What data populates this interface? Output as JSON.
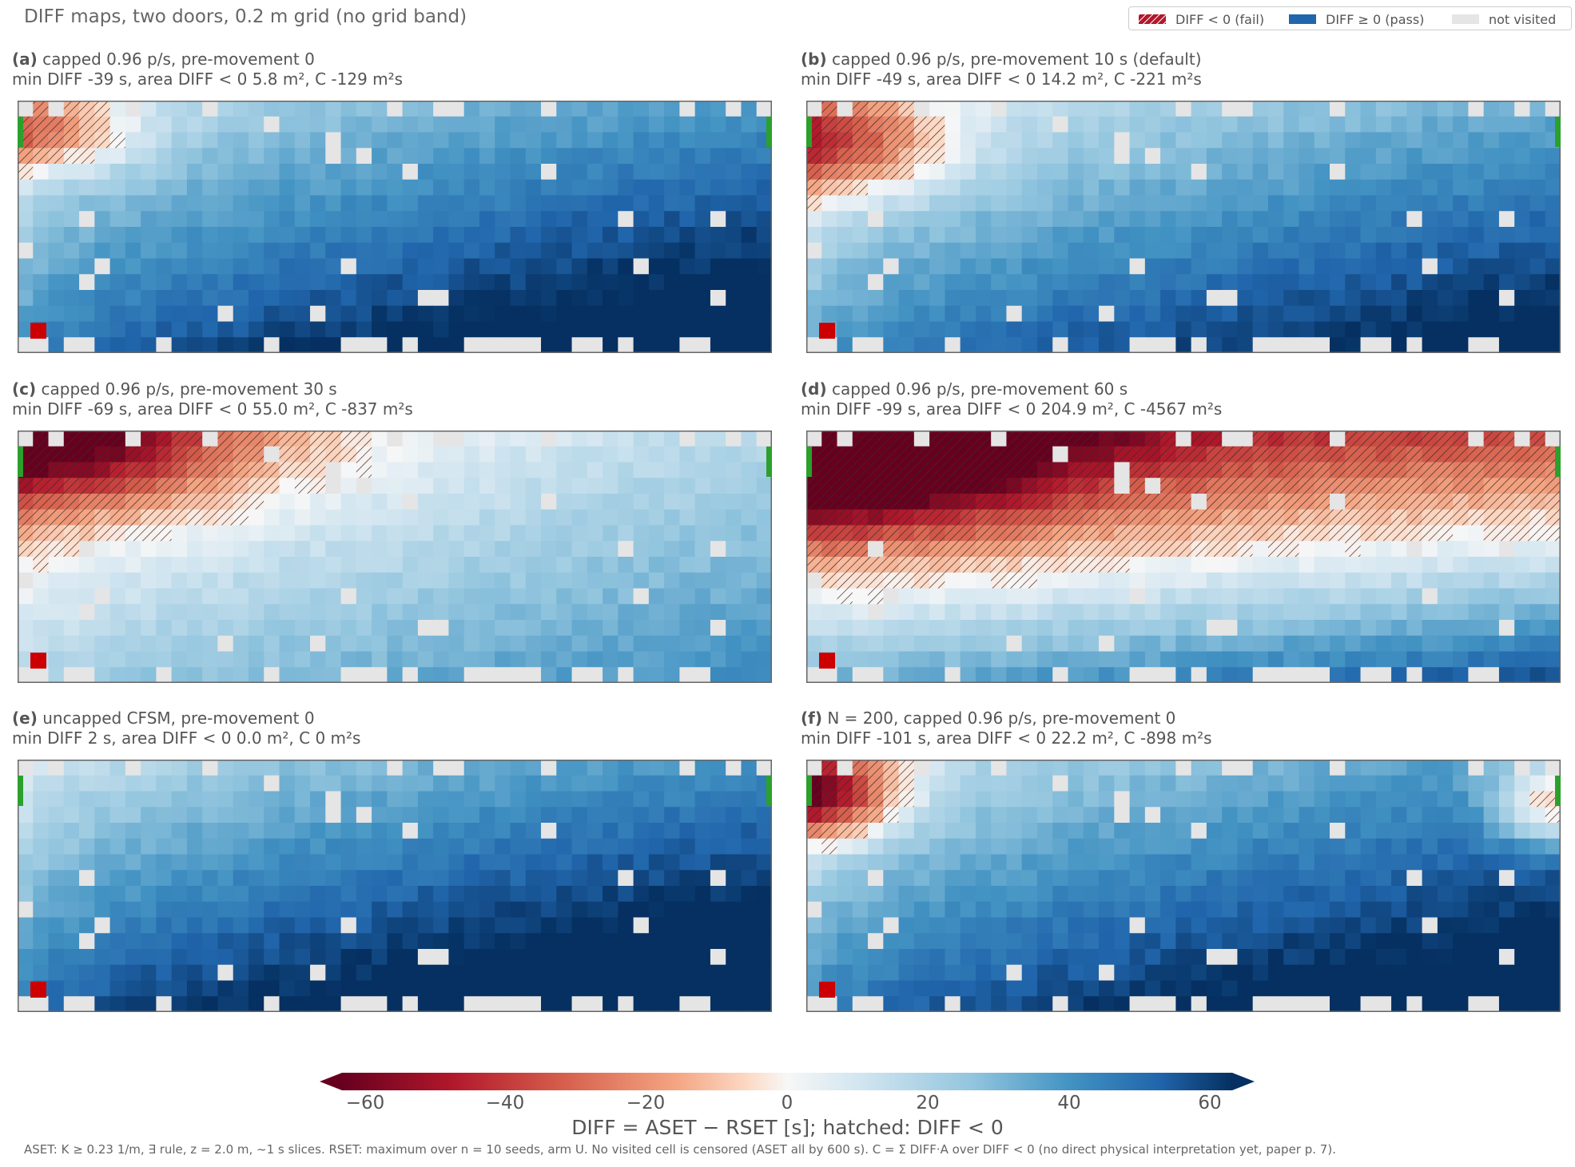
{
  "figure": {
    "title": "DIFF maps, two doors, 0.2 m grid (no grid band)",
    "legend": [
      {
        "label": "DIFF < 0 (fail)",
        "color": "#b2182b",
        "hatched": true
      },
      {
        "label": "DIFF ≥ 0 (pass)",
        "color": "#2166ac",
        "hatched": false
      },
      {
        "label": "not visited",
        "color": "#e5e5e5",
        "hatched": false
      }
    ],
    "colorbar": {
      "label": "DIFF = ASET − RSET [s]; hatched: DIFF < 0",
      "ticks": [
        "−60",
        "−40",
        "−20",
        "0",
        "20",
        "40",
        "60"
      ],
      "range": [
        -60,
        60
      ],
      "extend": "both"
    },
    "footnote": "ASET: K ≥ 0.23 1/m, ∃ rule, z = 2.0 m, ~1 s slices. RSET: maximum over n = 10 seeds, arm U. No visited cell is censored (ASET all by 600 s). C = Σ DIFF·A over DIFF < 0 (no direct physical interpretation yet, paper p. 7)."
  },
  "chart_data": [
    {
      "type": "heatmap",
      "label": "(a)",
      "title": "capped 0.96 p/s, pre-movement 0",
      "stats": "min DIFF -39 s, area DIFF < 0 5.8 m², C -129 m²s",
      "min_diff": -39,
      "area_fail_m2": 5.8,
      "C_m2s": -129
    },
    {
      "type": "heatmap",
      "label": "(b)",
      "title": "capped 0.96 p/s, pre-movement 10 s (default)",
      "stats": "min DIFF -49 s, area DIFF < 0 14.2 m², C -221 m²s",
      "min_diff": -49,
      "area_fail_m2": 14.2,
      "C_m2s": -221
    },
    {
      "type": "heatmap",
      "label": "(c)",
      "title": "capped 0.96 p/s, pre-movement 30 s",
      "stats": "min DIFF -69 s, area DIFF < 0 55.0 m², C -837 m²s",
      "min_diff": -69,
      "area_fail_m2": 55.0,
      "C_m2s": -837
    },
    {
      "type": "heatmap",
      "label": "(d)",
      "title": "capped 0.96 p/s, pre-movement 60 s",
      "stats": "min DIFF -99 s, area DIFF < 0 204.9 m², C -4567 m²s",
      "min_diff": -99,
      "area_fail_m2": 204.9,
      "C_m2s": -4567
    },
    {
      "type": "heatmap",
      "label": "(e)",
      "title": "uncapped CFSM, pre-movement 0",
      "stats": "min DIFF 2 s, area DIFF < 0 0.0 m², C 0 m²s",
      "min_diff": 2,
      "area_fail_m2": 0.0,
      "C_m2s": 0
    },
    {
      "type": "heatmap",
      "label": "(f)",
      "title": "N = 200, capped 0.96 p/s, pre-movement 0",
      "stats": "min DIFF -101 s, area DIFF < 0 22.2 m², C -898 m²s",
      "min_diff": -101,
      "area_fail_m2": 22.2,
      "C_m2s": -898
    }
  ]
}
